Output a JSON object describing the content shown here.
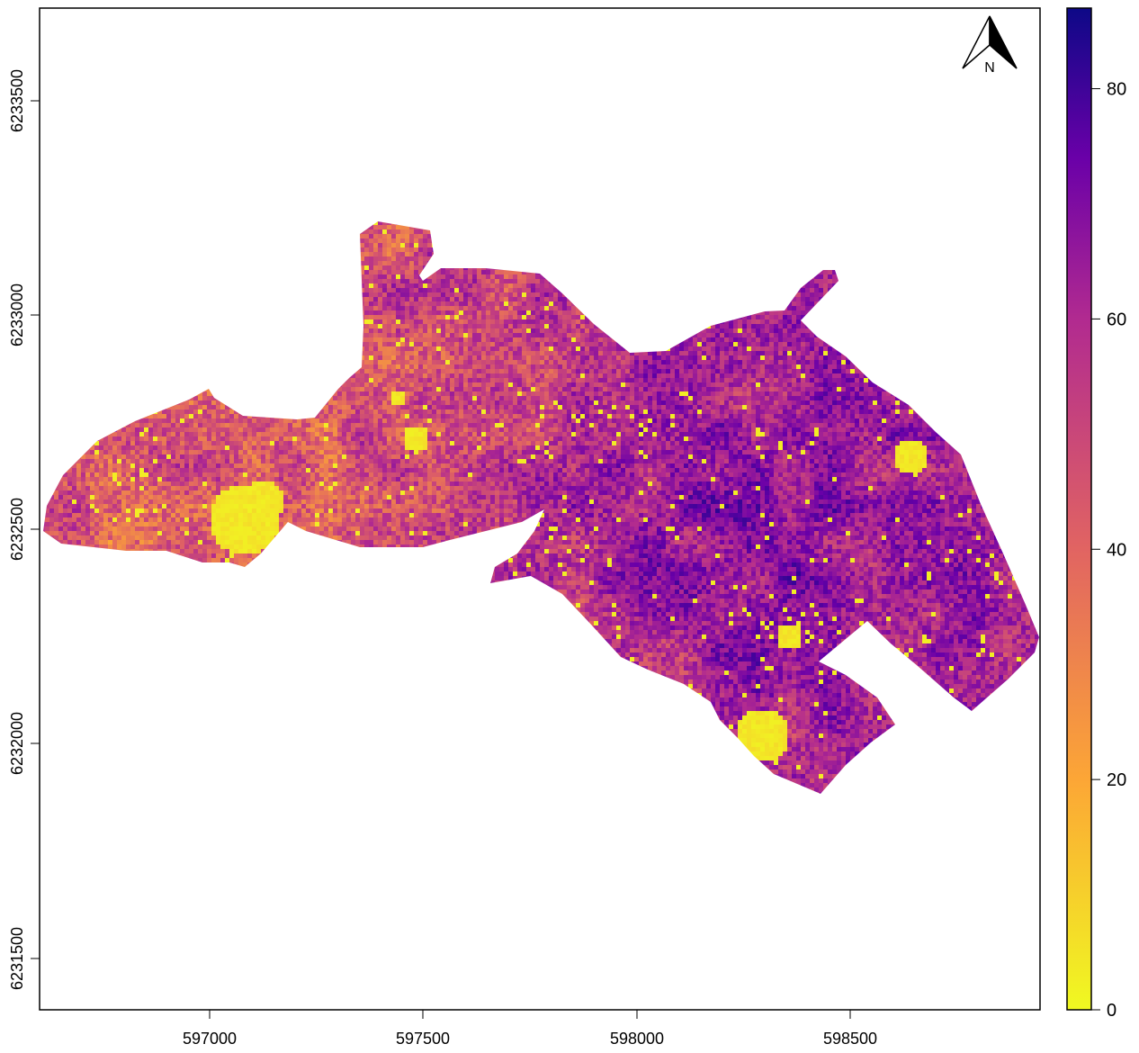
{
  "map": {
    "x_ticks": [
      "597000",
      "597500",
      "598000",
      "598500"
    ],
    "y_ticks": [
      "6231500",
      "6232000",
      "6232500",
      "6233000",
      "6233500"
    ],
    "x_range": [
      596600,
      598940
    ],
    "y_range": [
      6231420,
      6233720
    ],
    "north_arrow_label": "N",
    "north_arrow_icon": "north-arrow-icon"
  },
  "legend": {
    "ticks": [
      "0",
      "20",
      "40",
      "60",
      "80"
    ],
    "range": [
      0,
      87
    ],
    "colors": [
      "#f0f921",
      "#fca636",
      "#e16462",
      "#b12a90",
      "#6a00a8",
      "#0d0887"
    ]
  },
  "chart_data": {
    "type": "heatmap",
    "title": "",
    "xlabel": "",
    "ylabel": "",
    "xlim": [
      596600,
      598940
    ],
    "ylim": [
      6231420,
      6233720
    ],
    "x_ticks": [
      597000,
      597500,
      598000,
      598500
    ],
    "y_ticks": [
      6231500,
      6232000,
      6232500,
      6233000,
      6233500
    ],
    "color_scale": {
      "min": 0,
      "max": 87,
      "ticks": [
        0,
        20,
        40,
        60,
        80
      ],
      "palette": [
        "#f0f921",
        "#fca636",
        "#e16462",
        "#b12a90",
        "#6a00a8",
        "#0d0887"
      ]
    },
    "north_arrow": "top-right",
    "legend_position": "right"
  }
}
